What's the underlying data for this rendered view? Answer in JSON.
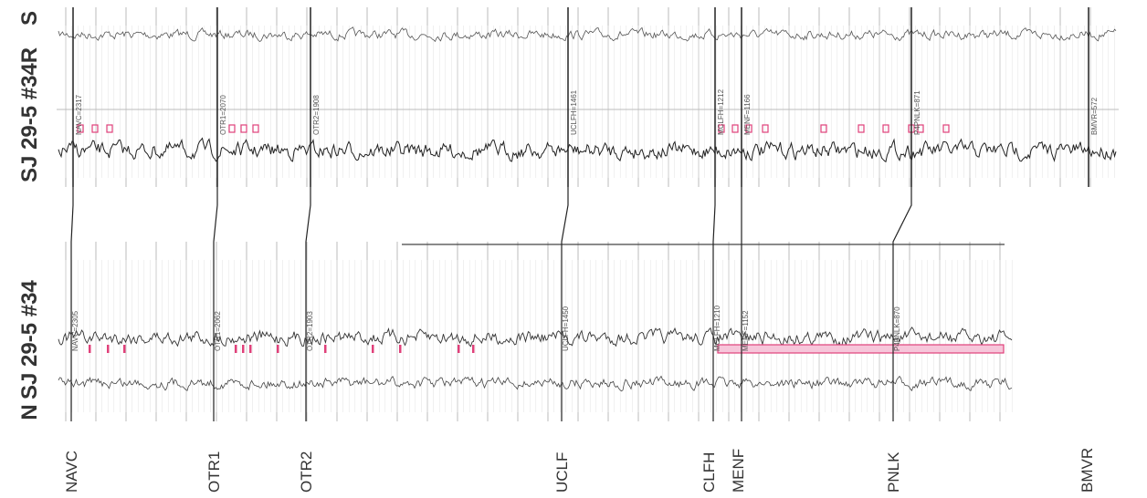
{
  "wells": [
    {
      "side": "S",
      "name": "SJ 29-5 #34R",
      "picks": [
        "NAVC=2317",
        "OTR1=2070",
        "OTR2=1908",
        "UCLFH=1461",
        "MCLFH=1212",
        "MENF=1166",
        "P4PNLK=871",
        "BMVR=572"
      ]
    },
    {
      "side": "N",
      "name": "SJ 29-5 #34",
      "picks": [
        "NAVC=2305",
        "OTR1=2062",
        "OTR2=1903",
        "UCLFH=1450",
        "MCLFH=1210",
        "MENF=1152",
        "P4PNLK=870"
      ]
    }
  ],
  "formations": [
    "NAVC",
    "OTR1",
    "OTR2",
    "UCLF",
    "CLFH",
    "MENF",
    "PNLK",
    "BMVR"
  ]
}
